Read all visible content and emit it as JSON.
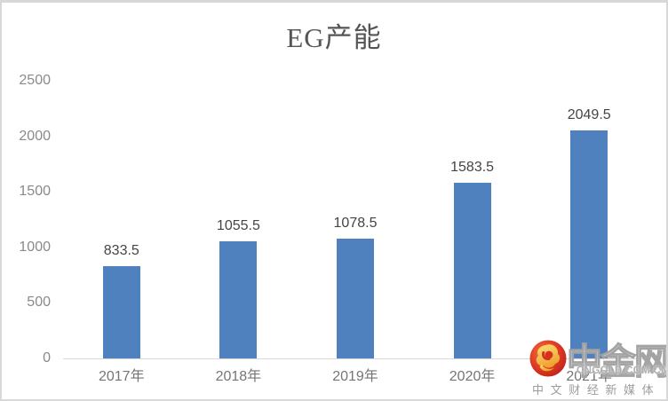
{
  "chart_data": {
    "type": "bar",
    "title": "EG产能",
    "categories": [
      "2017年",
      "2018年",
      "2019年",
      "2020年",
      "2021年"
    ],
    "values": [
      833.5,
      1055.5,
      1078.5,
      1583.5,
      2049.5
    ],
    "data_labels": [
      "833.5",
      "1055.5",
      "1078.5",
      "1583.5",
      "2049.5"
    ],
    "xlabel": "",
    "ylabel": "",
    "ylim": [
      0,
      2500
    ],
    "yticks": [
      0,
      500,
      1000,
      1500,
      2000,
      2500
    ],
    "grid": false,
    "legend": "none",
    "bar_color": "#4E81BD"
  },
  "watermark": {
    "brand": "中金网",
    "domain": "CNGOLD.COM.CN",
    "tagline": "中 文 财 经 新 媒 体",
    "logo_colors": {
      "circle_outer": "#b9211a",
      "circle_inner": "#ef5a2e",
      "swirl_light": "#fbe07a",
      "swirl_dark": "#f0a22e"
    }
  }
}
